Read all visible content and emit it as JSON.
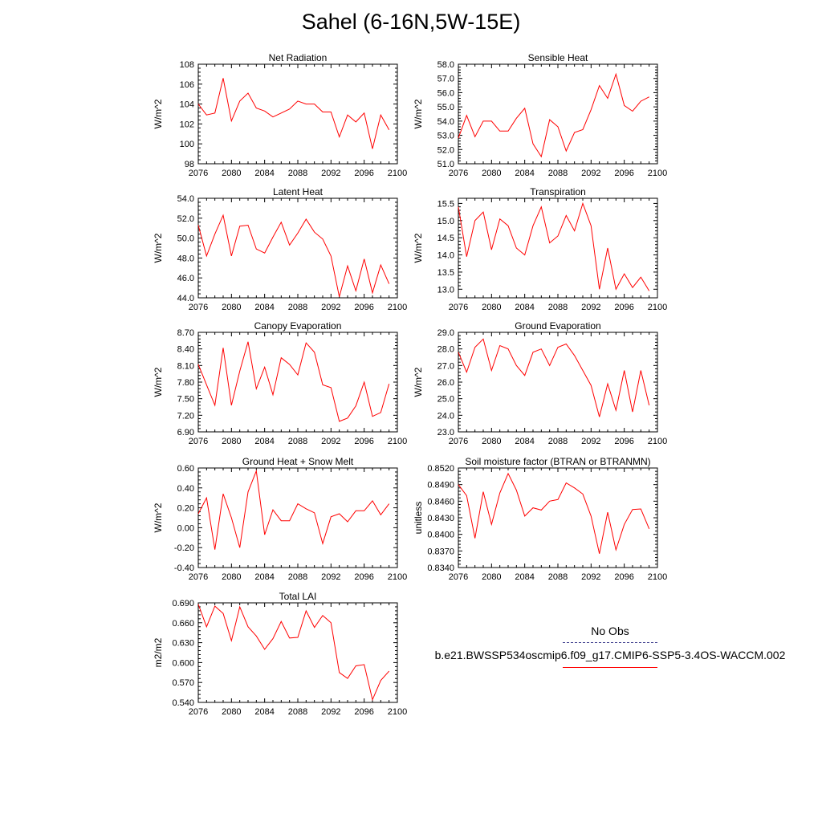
{
  "title": "Sahel (6-16N,5W-15E)",
  "colors": {
    "model_line": "#ff0000",
    "obs_line": "#3c3c8c",
    "frame": "#000000"
  },
  "legend": {
    "obs_label": "No Obs",
    "model_label": "b.e21.BWSSP534oscmip6.f09_g17.CMIP6-SSP5-3.4OS-WACCM.002"
  },
  "chart_data": [
    {
      "type": "line",
      "title": "Net Radiation",
      "ylabel": "W/m^2",
      "xlim": [
        2076,
        2100
      ],
      "ylim": [
        98,
        108
      ],
      "xticks": [
        "2076",
        "2080",
        "2084",
        "2088",
        "2092",
        "2096",
        "2100"
      ],
      "yticks": [
        "98",
        "100",
        "102",
        "104",
        "106",
        "108"
      ],
      "x": [
        2076,
        2077,
        2078,
        2079,
        2080,
        2081,
        2082,
        2083,
        2084,
        2085,
        2086,
        2087,
        2088,
        2089,
        2090,
        2091,
        2092,
        2093,
        2094,
        2095,
        2096,
        2097,
        2098,
        2099
      ],
      "series": [
        {
          "values": [
            104.0,
            102.9,
            103.1,
            106.6,
            102.3,
            104.3,
            105.1,
            103.6,
            103.3,
            102.7,
            103.1,
            103.5,
            104.3,
            104.0,
            104.0,
            103.2,
            103.2,
            100.7,
            102.9,
            102.2,
            103.1,
            99.5,
            102.9,
            101.4
          ]
        }
      ]
    },
    {
      "type": "line",
      "title": "Sensible Heat",
      "ylabel": "W/m^2",
      "xlim": [
        2076,
        2100
      ],
      "ylim": [
        51.0,
        58.0
      ],
      "xticks": [
        "2076",
        "2080",
        "2084",
        "2088",
        "2092",
        "2096",
        "2100"
      ],
      "yticks": [
        "51.0",
        "52.0",
        "53.0",
        "54.0",
        "55.0",
        "56.0",
        "57.0",
        "58.0"
      ],
      "x": [
        2076,
        2077,
        2078,
        2079,
        2080,
        2081,
        2082,
        2083,
        2084,
        2085,
        2086,
        2087,
        2088,
        2089,
        2090,
        2091,
        2092,
        2093,
        2094,
        2095,
        2096,
        2097,
        2098,
        2099
      ],
      "series": [
        {
          "values": [
            52.8,
            54.4,
            52.9,
            54.0,
            54.0,
            53.3,
            53.3,
            54.2,
            54.9,
            52.4,
            51.5,
            54.1,
            53.6,
            51.9,
            53.2,
            53.4,
            54.8,
            56.5,
            55.6,
            57.3,
            55.1,
            54.7,
            55.4,
            55.7
          ]
        }
      ]
    },
    {
      "type": "line",
      "title": "Latent Heat",
      "ylabel": "W/m^2",
      "xlim": [
        2076,
        2100
      ],
      "ylim": [
        44.0,
        54.0
      ],
      "xticks": [
        "2076",
        "2080",
        "2084",
        "2088",
        "2092",
        "2096",
        "2100"
      ],
      "yticks": [
        "44.0",
        "46.0",
        "48.0",
        "50.0",
        "52.0",
        "54.0"
      ],
      "x": [
        2076,
        2077,
        2078,
        2079,
        2080,
        2081,
        2082,
        2083,
        2084,
        2085,
        2086,
        2087,
        2088,
        2089,
        2090,
        2091,
        2092,
        2093,
        2094,
        2095,
        2096,
        2097,
        2098,
        2099
      ],
      "series": [
        {
          "values": [
            51.3,
            48.2,
            50.4,
            52.3,
            48.2,
            51.2,
            51.3,
            48.9,
            48.5,
            50.1,
            51.6,
            49.3,
            50.5,
            51.9,
            50.6,
            49.9,
            48.2,
            44.1,
            47.2,
            44.7,
            47.9,
            44.5,
            47.3,
            45.4
          ]
        }
      ]
    },
    {
      "type": "line",
      "title": "Transpiration",
      "ylabel": "W/m^2",
      "xlim": [
        2076,
        2100
      ],
      "ylim": [
        12.75,
        15.65
      ],
      "xticks": [
        "2076",
        "2080",
        "2084",
        "2088",
        "2092",
        "2096",
        "2100"
      ],
      "yticks": [
        "13.0",
        "13.5",
        "14.0",
        "14.5",
        "15.0",
        "15.5"
      ],
      "x": [
        2076,
        2077,
        2078,
        2079,
        2080,
        2081,
        2082,
        2083,
        2084,
        2085,
        2086,
        2087,
        2088,
        2089,
        2090,
        2091,
        2092,
        2093,
        2094,
        2095,
        2096,
        2097,
        2098,
        2099
      ],
      "series": [
        {
          "values": [
            15.4,
            13.95,
            15.0,
            15.25,
            14.15,
            15.05,
            14.85,
            14.2,
            14.0,
            14.85,
            15.4,
            14.35,
            14.55,
            15.15,
            14.7,
            15.5,
            14.85,
            13.0,
            14.2,
            13.0,
            13.45,
            13.05,
            13.35,
            12.95
          ]
        }
      ]
    },
    {
      "type": "line",
      "title": "Canopy Evaporation",
      "ylabel": "W/m^2",
      "xlim": [
        2076,
        2100
      ],
      "ylim": [
        6.9,
        8.7
      ],
      "xticks": [
        "2076",
        "2080",
        "2084",
        "2088",
        "2092",
        "2096",
        "2100"
      ],
      "yticks": [
        "6.90",
        "7.20",
        "7.50",
        "7.80",
        "8.10",
        "8.40",
        "8.70"
      ],
      "x": [
        2076,
        2077,
        2078,
        2079,
        2080,
        2081,
        2082,
        2083,
        2084,
        2085,
        2086,
        2087,
        2088,
        2089,
        2090,
        2091,
        2092,
        2093,
        2094,
        2095,
        2096,
        2097,
        2098,
        2099
      ],
      "series": [
        {
          "values": [
            8.12,
            7.75,
            7.38,
            8.42,
            7.38,
            8.0,
            8.53,
            7.68,
            8.07,
            7.57,
            8.24,
            8.12,
            7.93,
            8.51,
            8.34,
            7.75,
            7.7,
            7.09,
            7.15,
            7.37,
            7.8,
            7.18,
            7.25,
            7.77
          ]
        }
      ]
    },
    {
      "type": "line",
      "title": "Ground Evaporation",
      "ylabel": "W/m^2",
      "xlim": [
        2076,
        2100
      ],
      "ylim": [
        23.0,
        29.0
      ],
      "xticks": [
        "2076",
        "2080",
        "2084",
        "2088",
        "2092",
        "2096",
        "2100"
      ],
      "yticks": [
        "23.0",
        "24.0",
        "25.0",
        "26.0",
        "27.0",
        "28.0",
        "29.0"
      ],
      "x": [
        2076,
        2077,
        2078,
        2079,
        2080,
        2081,
        2082,
        2083,
        2084,
        2085,
        2086,
        2087,
        2088,
        2089,
        2090,
        2091,
        2092,
        2093,
        2094,
        2095,
        2096,
        2097,
        2098,
        2099
      ],
      "series": [
        {
          "values": [
            27.8,
            26.6,
            28.1,
            28.6,
            26.7,
            28.2,
            28.0,
            27.0,
            26.4,
            27.8,
            28.0,
            27.0,
            28.1,
            28.3,
            27.6,
            26.7,
            25.8,
            23.9,
            25.9,
            24.3,
            26.7,
            24.2,
            26.7,
            24.6
          ]
        }
      ]
    },
    {
      "type": "line",
      "title": "Ground Heat + Snow Melt",
      "ylabel": "W/m^2",
      "xlim": [
        2076,
        2100
      ],
      "ylim": [
        -0.4,
        0.6
      ],
      "xticks": [
        "2076",
        "2080",
        "2084",
        "2088",
        "2092",
        "2096",
        "2100"
      ],
      "yticks": [
        "-0.40",
        "-0.20",
        "0.00",
        "0.20",
        "0.40",
        "0.60"
      ],
      "x": [
        2076,
        2077,
        2078,
        2079,
        2080,
        2081,
        2082,
        2083,
        2084,
        2085,
        2086,
        2087,
        2088,
        2089,
        2090,
        2091,
        2092,
        2093,
        2094,
        2095,
        2096,
        2097,
        2098,
        2099
      ],
      "series": [
        {
          "values": [
            0.14,
            0.3,
            -0.22,
            0.34,
            0.1,
            -0.2,
            0.36,
            0.57,
            -0.07,
            0.18,
            0.07,
            0.07,
            0.24,
            0.19,
            0.15,
            -0.16,
            0.11,
            0.14,
            0.06,
            0.17,
            0.17,
            0.27,
            0.13,
            0.24
          ]
        }
      ]
    },
    {
      "type": "line",
      "title": "Soil moisture factor (BTRAN or BTRANMN)",
      "ylabel": "unitless",
      "xlim": [
        2076,
        2100
      ],
      "ylim": [
        0.834,
        0.852
      ],
      "xticks": [
        "2076",
        "2080",
        "2084",
        "2088",
        "2092",
        "2096",
        "2100"
      ],
      "yticks": [
        "0.8340",
        "0.8370",
        "0.8400",
        "0.8430",
        "0.8460",
        "0.8490",
        "0.8520"
      ],
      "x": [
        2076,
        2077,
        2078,
        2079,
        2080,
        2081,
        2082,
        2083,
        2084,
        2085,
        2086,
        2087,
        2088,
        2089,
        2090,
        2091,
        2092,
        2093,
        2094,
        2095,
        2096,
        2097,
        2098,
        2099
      ],
      "series": [
        {
          "values": [
            0.849,
            0.847,
            0.8393,
            0.8477,
            0.8418,
            0.8475,
            0.851,
            0.848,
            0.8433,
            0.8448,
            0.8444,
            0.846,
            0.8463,
            0.8493,
            0.8484,
            0.8473,
            0.8433,
            0.8365,
            0.844,
            0.8372,
            0.8418,
            0.8445,
            0.8446,
            0.841
          ]
        }
      ]
    },
    {
      "type": "line",
      "title": "Total LAI",
      "ylabel": "m2/m2",
      "xlim": [
        2076,
        2100
      ],
      "ylim": [
        0.54,
        0.69
      ],
      "xticks": [
        "2076",
        "2080",
        "2084",
        "2088",
        "2092",
        "2096",
        "2100"
      ],
      "yticks": [
        "0.540",
        "0.570",
        "0.600",
        "0.630",
        "0.660",
        "0.690"
      ],
      "x": [
        2076,
        2077,
        2078,
        2079,
        2080,
        2081,
        2082,
        2083,
        2084,
        2085,
        2086,
        2087,
        2088,
        2089,
        2090,
        2091,
        2092,
        2093,
        2094,
        2095,
        2096,
        2097,
        2098,
        2099
      ],
      "series": [
        {
          "values": [
            0.688,
            0.654,
            0.685,
            0.674,
            0.633,
            0.684,
            0.654,
            0.64,
            0.62,
            0.636,
            0.662,
            0.637,
            0.638,
            0.678,
            0.653,
            0.671,
            0.66,
            0.585,
            0.576,
            0.595,
            0.597,
            0.544,
            0.573,
            0.587
          ]
        }
      ]
    }
  ]
}
